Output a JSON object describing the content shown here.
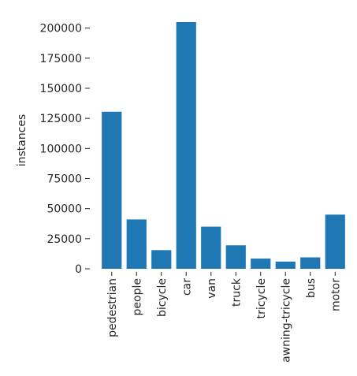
{
  "chart_data": {
    "type": "bar",
    "title": "",
    "xlabel": "",
    "ylabel": "instances",
    "categories": [
      "pedestrian",
      "people",
      "bicycle",
      "car",
      "van",
      "truck",
      "tricycle",
      "awning-tricycle",
      "bus",
      "motor"
    ],
    "values": [
      130500,
      41000,
      15500,
      205000,
      35000,
      19500,
      8500,
      6000,
      9500,
      45000
    ],
    "ylim": [
      0,
      205000
    ],
    "yticks": [
      0,
      25000,
      50000,
      75000,
      100000,
      125000,
      150000,
      175000,
      200000
    ],
    "bar_color": "#1f77b4",
    "grid": false,
    "legend": "none"
  }
}
